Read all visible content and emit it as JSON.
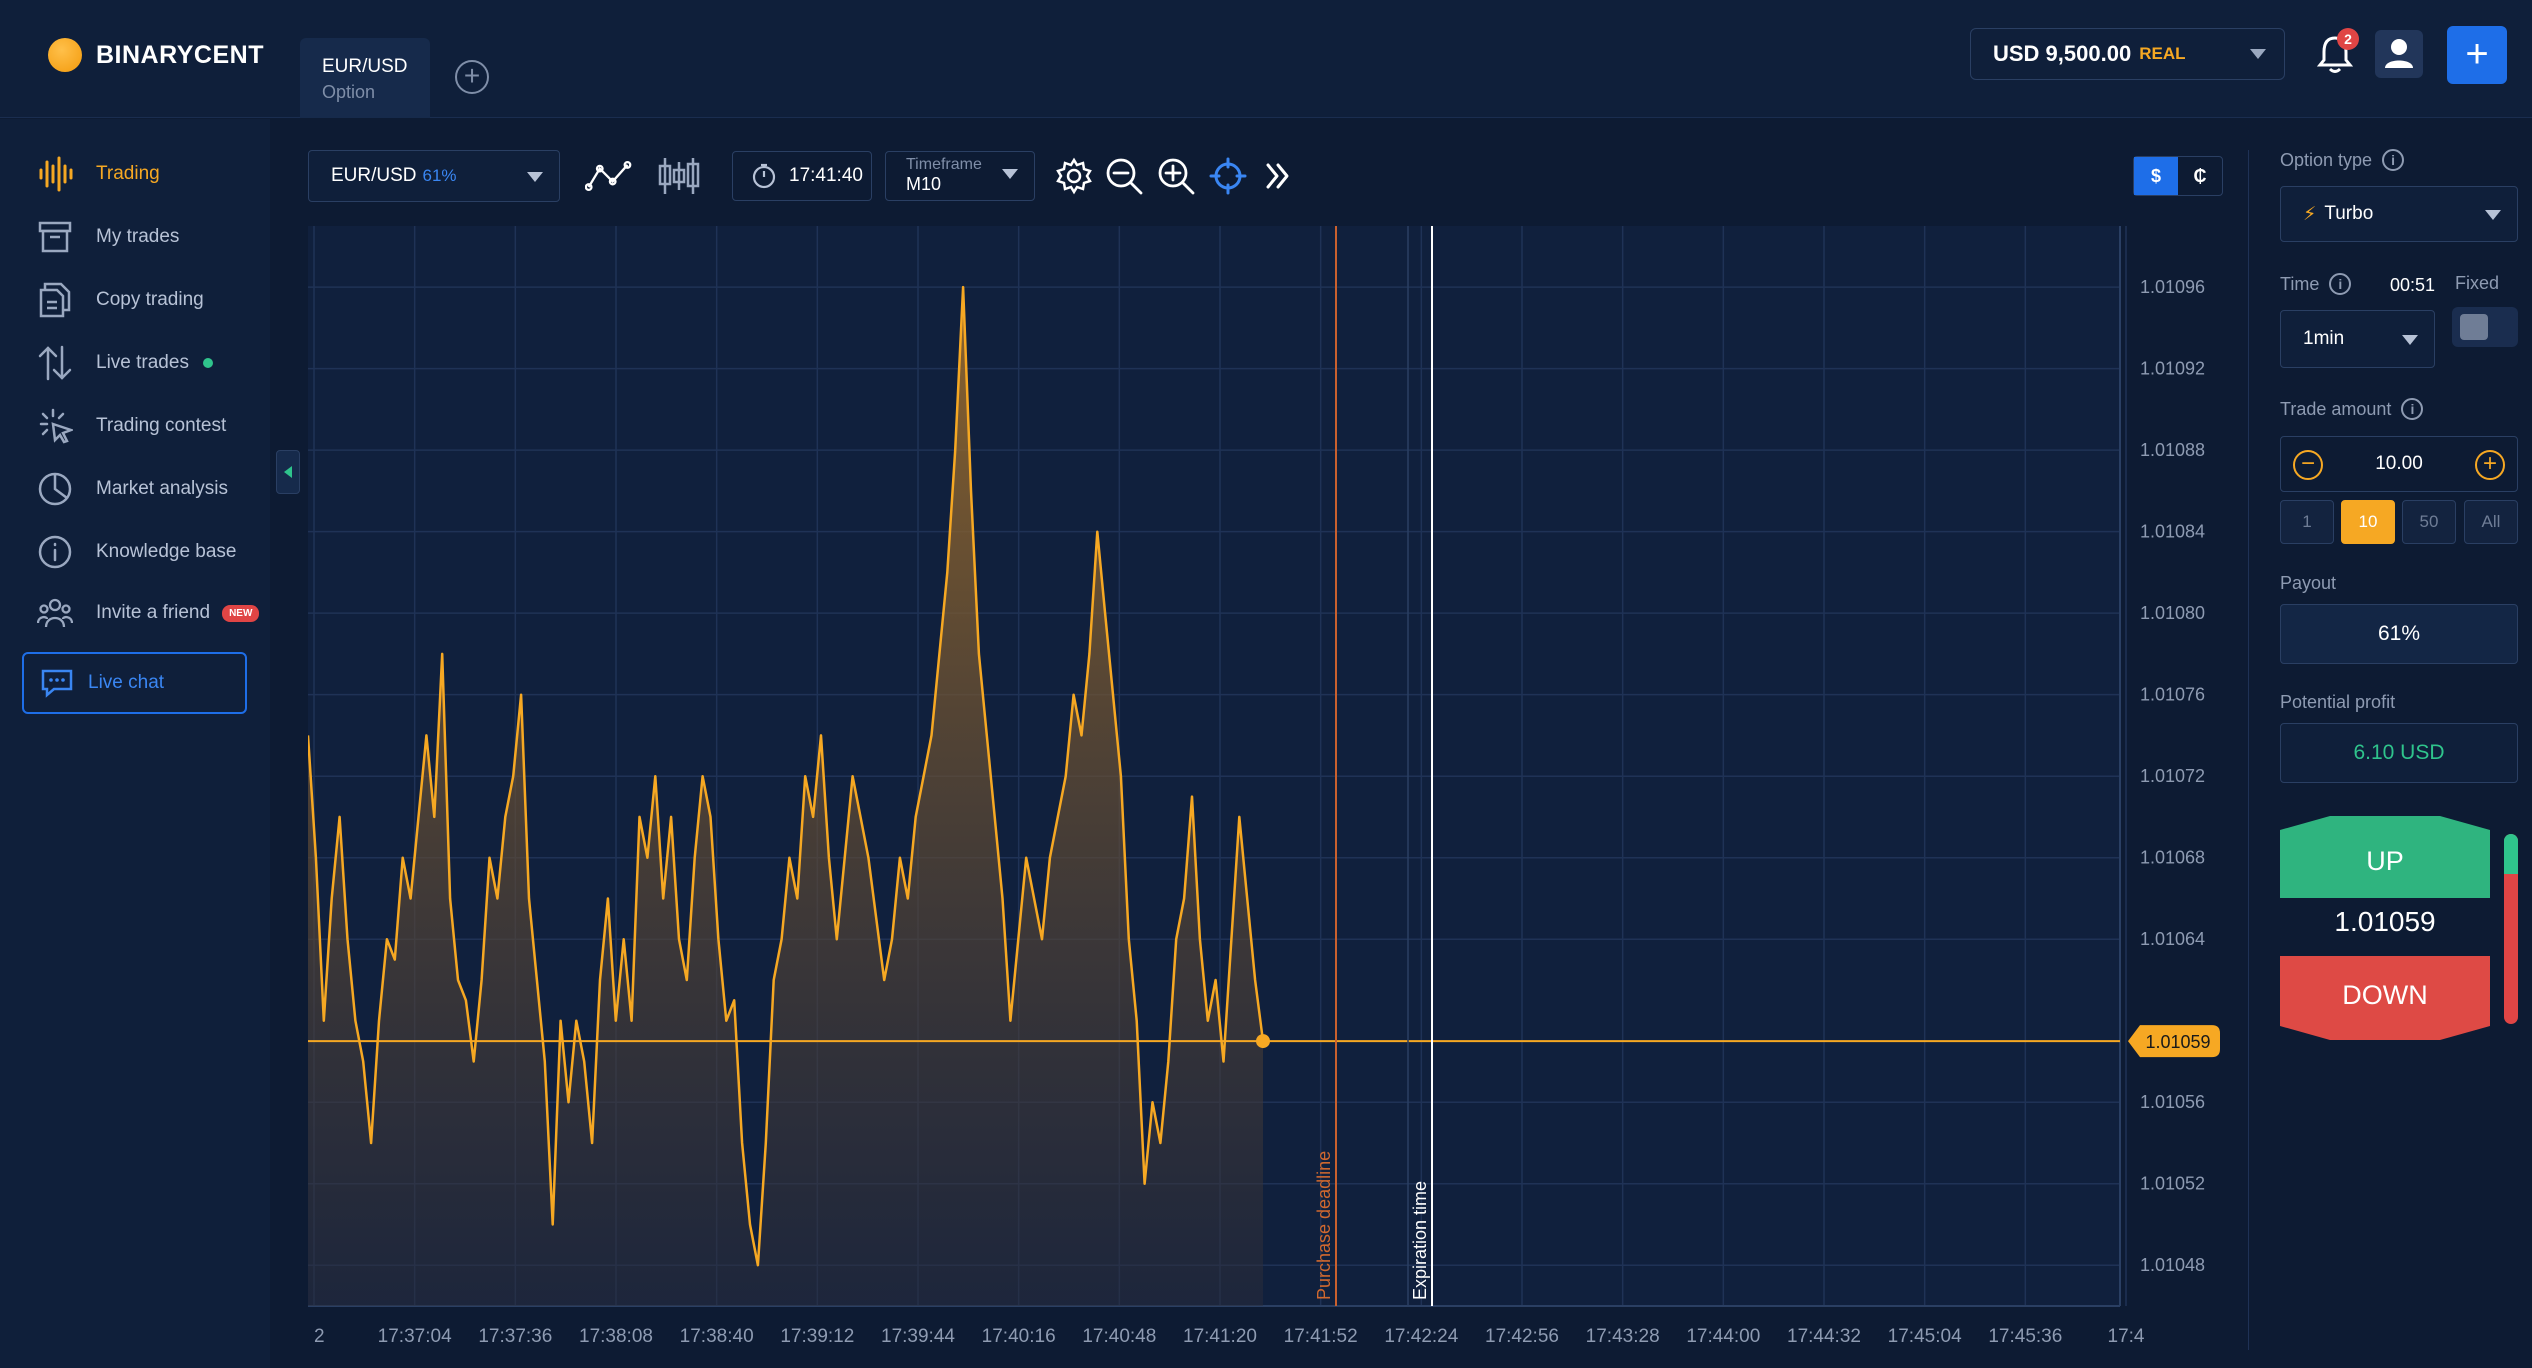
{
  "header": {
    "brand": "BINARYCENT",
    "tab_asset": "EUR/USD",
    "tab_type": "Option",
    "balance_amount": "USD 9,500.00",
    "balance_mode": "REAL",
    "notifications_count": "2"
  },
  "sidebar": {
    "items": [
      {
        "label": "Trading"
      },
      {
        "label": "My trades"
      },
      {
        "label": "Copy trading"
      },
      {
        "label": "Live trades"
      },
      {
        "label": "Trading contest"
      },
      {
        "label": "Market analysis"
      },
      {
        "label": "Knowledge base"
      },
      {
        "label": "Invite a friend"
      }
    ],
    "new_badge": "NEW",
    "live_chat": "Live chat"
  },
  "toolbar": {
    "asset": "EUR/USD",
    "asset_payout": "61%",
    "clock": "17:41:40",
    "timeframe_label": "Timeframe",
    "timeframe_value": "M10",
    "currency_on": "$",
    "currency_off": "₵"
  },
  "panel": {
    "option_type_label": "Option type",
    "option_type_value": "Turbo",
    "time_label": "Time",
    "time_countdown": "00:51",
    "fixed_label": "Fixed",
    "time_value": "1min",
    "trade_amount_label": "Trade amount",
    "trade_amount_value": "10.00",
    "presets": [
      "1",
      "10",
      "50",
      "All"
    ],
    "payout_label": "Payout",
    "payout_value": "61%",
    "potential_label": "Potential profit",
    "potential_value": "6.10 USD",
    "up_label": "UP",
    "down_label": "DOWN",
    "current_price": "1.01059"
  },
  "colors": {
    "accent": "#f6a823",
    "up": "#2fb47f",
    "down": "#de4a45",
    "primary": "#1e6ee8"
  },
  "chart_data": {
    "type": "area",
    "current_price": "1.01059",
    "current_price_value": 1.01059,
    "ylim": [
      1.01046,
      1.01099
    ],
    "y_ticks": [
      "1.01096",
      "1.01092",
      "1.01088",
      "1.01084",
      "1.01080",
      "1.01076",
      "1.01072",
      "1.01068",
      "1.01064",
      "1.01056",
      "1.01052",
      "1.01048"
    ],
    "y_tick_values": [
      1.01096,
      1.01092,
      1.01088,
      1.01084,
      1.0108,
      1.01076,
      1.01072,
      1.01068,
      1.01064,
      1.01056,
      1.01052,
      1.01048
    ],
    "x_ticks": [
      "2",
      "17:37:04",
      "17:37:36",
      "17:38:08",
      "17:38:40",
      "17:39:12",
      "17:39:44",
      "17:40:16",
      "17:40:48",
      "17:41:20",
      "17:41:52",
      "17:42:24",
      "17:42:56",
      "17:43:28",
      "17:44:00",
      "17:44:32",
      "17:45:04",
      "17:45:36",
      "17:4"
    ],
    "purchase_deadline_label": "Purchase deadline",
    "expiration_label": "Expiration time",
    "series": [
      {
        "values": [
          1.01074,
          1.01068,
          1.0106,
          1.01066,
          1.0107,
          1.01064,
          1.0106,
          1.01058,
          1.01054,
          1.0106,
          1.01064,
          1.01063,
          1.01068,
          1.01066,
          1.0107,
          1.01074,
          1.0107,
          1.01078,
          1.01066,
          1.01062,
          1.01061,
          1.01058,
          1.01062,
          1.01068,
          1.01066,
          1.0107,
          1.01072,
          1.01076,
          1.01066,
          1.01062,
          1.01058,
          1.0105,
          1.0106,
          1.01056,
          1.0106,
          1.01058,
          1.01054,
          1.01062,
          1.01066,
          1.0106,
          1.01064,
          1.0106,
          1.0107,
          1.01068,
          1.01072,
          1.01066,
          1.0107,
          1.01064,
          1.01062,
          1.01068,
          1.01072,
          1.0107,
          1.01064,
          1.0106,
          1.01061,
          1.01054,
          1.0105,
          1.01048,
          1.01054,
          1.01062,
          1.01064,
          1.01068,
          1.01066,
          1.01072,
          1.0107,
          1.01074,
          1.01068,
          1.01064,
          1.01068,
          1.01072,
          1.0107,
          1.01068,
          1.01065,
          1.01062,
          1.01064,
          1.01068,
          1.01066,
          1.0107,
          1.01072,
          1.01074,
          1.01078,
          1.01082,
          1.01088,
          1.01096,
          1.01086,
          1.01078,
          1.01074,
          1.0107,
          1.01066,
          1.0106,
          1.01064,
          1.01068,
          1.01066,
          1.01064,
          1.01068,
          1.0107,
          1.01072,
          1.01076,
          1.01074,
          1.01078,
          1.01084,
          1.0108,
          1.01076,
          1.01072,
          1.01064,
          1.0106,
          1.01052,
          1.01056,
          1.01054,
          1.01058,
          1.01064,
          1.01066,
          1.01071,
          1.01064,
          1.0106,
          1.01062,
          1.01058,
          1.01064,
          1.0107,
          1.01066,
          1.01062,
          1.01059
        ]
      }
    ]
  }
}
